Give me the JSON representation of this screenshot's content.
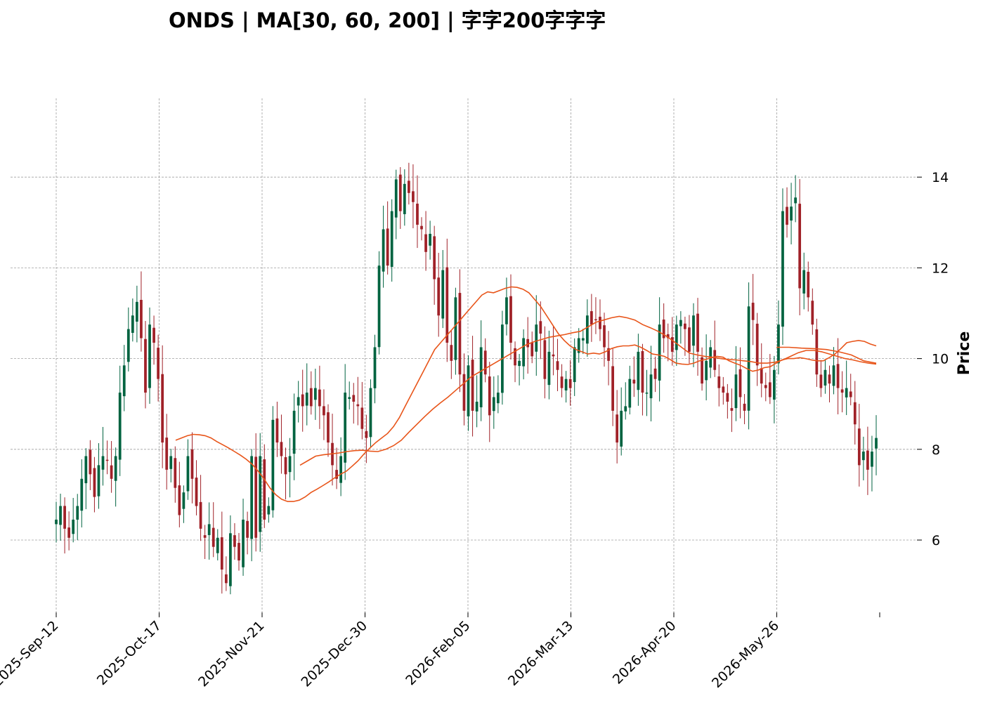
{
  "chart_data": {
    "type": "candlestick",
    "title": "ONDS  |  MA[30, 60, 200]  |  字字200字字字",
    "xlabel": "",
    "ylabel": "Price",
    "ylim": [
      4.5,
      15.3
    ],
    "yticks": [
      6,
      8,
      10,
      12,
      14
    ],
    "grid": true,
    "x_tick_labels": [
      "2025-Sep-12",
      "2025-Oct-17",
      "2025-Nov-21",
      "2025-Dec-30",
      "2026-Feb-05",
      "2026-Mar-13",
      "2026-Apr-20",
      "2026-May-26"
    ],
    "colors": {
      "up": "#006340",
      "down": "#a02128",
      "ma": "#e8551a",
      "grid": "#a0a0a0"
    },
    "ohlc_close": [
      6.45,
      6.75,
      6.25,
      6.05,
      6.45,
      6.75,
      7.35,
      7.85,
      7.45,
      6.95,
      7.65,
      7.85,
      7.75,
      7.35,
      7.85,
      9.25,
      9.85,
      10.65,
      10.95,
      11.25,
      10.45,
      9.25,
      10.75,
      10.35,
      9.55,
      8.15,
      7.55,
      7.85,
      7.15,
      6.55,
      7.05,
      7.85,
      7.35,
      6.75,
      6.25,
      6.05,
      6.35,
      5.85,
      6.05,
      5.35,
      5.05,
      6.15,
      5.85,
      5.55,
      6.45,
      6.05,
      7.85,
      6.05,
      7.85,
      6.45,
      6.75,
      8.65,
      8.15,
      7.85,
      7.45,
      7.85,
      8.85,
      9.15,
      8.95,
      9.25,
      8.95,
      9.35,
      8.95,
      8.75,
      8.15,
      7.65,
      7.35,
      7.85,
      9.25,
      9.15,
      9.05,
      8.95,
      8.45,
      8.25,
      9.35,
      10.25,
      12.05,
      12.85,
      12.05,
      13.25,
      13.95,
      13.25,
      13.85,
      13.65,
      13.45,
      12.95,
      12.85,
      12.35,
      12.75,
      11.75,
      10.95,
      11.95,
      10.35,
      9.95,
      11.35,
      9.65,
      8.85,
      9.85,
      8.85,
      9.05,
      10.25,
      9.65,
      8.75,
      9.15,
      9.25,
      10.75,
      11.35,
      10.35,
      9.85,
      9.95,
      10.45,
      10.25,
      10.05,
      10.75,
      10.55,
      9.55,
      10.15,
      10.05,
      9.75,
      9.35,
      9.55,
      9.35,
      10.25,
      10.45,
      10.45,
      10.95,
      10.75,
      10.85,
      10.65,
      10.25,
      9.95,
      8.85,
      8.15,
      8.85,
      8.95,
      9.55,
      9.45,
      10.15,
      9.25,
      9.25,
      9.65,
      9.55,
      10.75,
      10.45,
      10.45,
      10.15,
      10.75,
      10.85,
      10.65,
      10.15,
      10.95,
      10.15,
      9.45,
      9.95,
      10.25,
      9.75,
      9.35,
      9.25,
      9.05,
      8.85,
      9.65,
      9.15,
      8.85,
      11.15,
      10.85,
      9.85,
      9.45,
      9.35,
      9.15,
      9.75,
      10.75,
      13.25,
      12.95,
      13.35,
      13.55,
      11.55,
      11.95,
      11.35,
      10.75,
      9.65,
      9.35,
      9.75,
      9.45,
      9.85,
      9.35,
      9.25,
      9.35,
      9.15,
      8.55,
      7.65,
      7.95,
      7.55,
      7.95,
      8.25
    ],
    "ma_30": [
      8.2,
      8.25,
      8.3,
      8.33,
      8.32,
      8.3,
      8.25,
      8.17,
      8.1,
      8.03,
      7.95,
      7.87,
      7.78,
      7.67,
      7.52,
      7.35,
      7.15,
      7.0,
      6.9,
      6.85,
      6.85,
      6.88,
      6.95,
      7.05,
      7.12,
      7.2,
      7.28,
      7.37,
      7.45,
      7.52,
      7.63,
      7.75,
      7.9,
      8.03,
      8.15,
      8.25,
      8.35,
      8.5,
      8.7,
      8.95,
      9.2,
      9.45,
      9.7,
      9.95,
      10.2,
      10.35,
      10.5,
      10.65,
      10.8,
      10.95,
      11.1,
      11.25,
      11.4,
      11.47,
      11.45,
      11.5,
      11.55,
      11.58,
      11.57,
      11.53,
      11.45,
      11.3,
      11.15,
      10.95,
      10.75,
      10.55,
      10.4,
      10.28,
      10.2,
      10.15,
      10.1,
      10.12,
      10.1,
      10.15,
      10.22,
      10.26,
      10.28,
      10.28,
      10.3,
      10.25,
      10.18,
      10.1,
      10.08,
      10.05,
      9.98,
      9.9,
      9.88,
      9.87,
      9.9,
      9.95,
      9.98,
      10.02,
      10.05,
      10.03,
      9.95,
      9.9,
      9.85,
      9.78,
      9.72,
      9.75,
      9.8,
      9.82,
      9.9,
      9.97,
      10.0,
      10.0,
      10.02,
      10.0,
      9.97,
      9.95,
      9.95,
      10.02,
      10.1,
      10.22,
      10.35,
      10.38,
      10.4,
      10.38,
      10.32,
      10.28
    ],
    "ma_60": [
      7.65,
      7.75,
      7.85,
      7.88,
      7.9,
      7.92,
      7.95,
      7.97,
      7.98,
      7.96,
      7.95,
      8.0,
      8.08,
      8.2,
      8.38,
      8.55,
      8.72,
      8.88,
      9.02,
      9.15,
      9.3,
      9.45,
      9.6,
      9.7,
      9.8,
      9.9,
      10.0,
      10.1,
      10.2,
      10.3,
      10.37,
      10.42,
      10.47,
      10.5,
      10.53,
      10.57,
      10.6,
      10.7,
      10.8,
      10.85,
      10.9,
      10.93,
      10.9,
      10.85,
      10.75,
      10.68,
      10.6,
      10.5,
      10.38,
      10.25,
      10.12,
      10.08,
      10.05,
      10.03,
      10.0,
      9.98,
      9.97,
      9.95,
      9.93,
      9.9,
      9.9,
      9.92,
      9.97,
      10.05,
      10.13,
      10.18,
      10.18,
      10.15,
      10.1,
      10.05,
      10.0,
      9.97,
      9.93,
      9.9,
      9.88
    ],
    "ma_200": [
      10.25,
      10.25,
      10.23,
      10.22,
      10.2,
      10.15,
      10.08,
      9.95,
      9.9
    ]
  }
}
